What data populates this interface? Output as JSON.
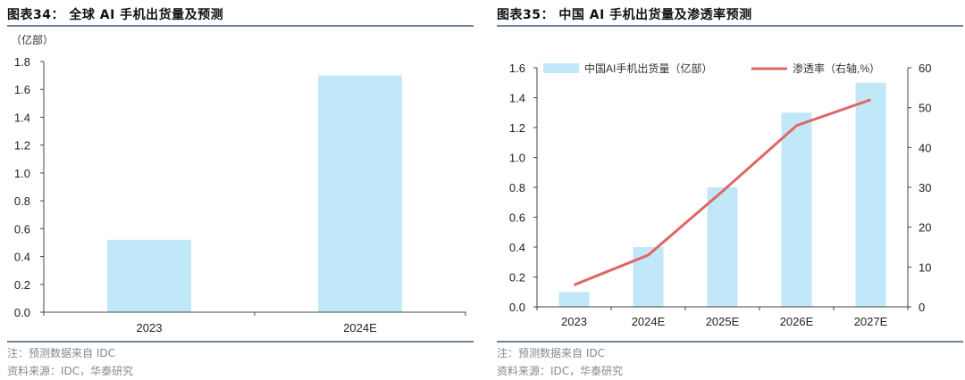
{
  "left": {
    "title": "图表34：  全球 AI 手机出货量及预测",
    "unit": "（亿部）",
    "note": "注：预测数据来自 IDC",
    "source": "资料来源：IDC，华泰研究"
  },
  "right": {
    "title": "图表35：  中国 AI 手机出货量及渗透率预测",
    "legend_bar": "中国AI手机出货量（亿部）",
    "legend_line": "渗透率（右轴,%）",
    "note": "注：预测数据来自 IDC",
    "source": "资料来源：IDC，华泰研究"
  },
  "colors": {
    "bar": "#c1e8f8",
    "line": "#e06666",
    "axis": "#444444",
    "rule": "#6f8296"
  },
  "chart_data": [
    {
      "type": "bar",
      "title": "全球 AI 手机出货量及预测",
      "categories": [
        "2023",
        "2024E"
      ],
      "values": [
        0.52,
        1.7
      ],
      "xlabel": "",
      "ylabel": "亿部",
      "ylim": [
        0,
        1.8
      ],
      "yticks": [
        "0.0",
        "0.2",
        "0.4",
        "0.6",
        "0.8",
        "1.0",
        "1.2",
        "1.4",
        "1.6",
        "1.8"
      ],
      "grid": false,
      "legend": null
    },
    {
      "type": "bar+line",
      "title": "中国 AI 手机出货量及渗透率预测",
      "categories": [
        "2023",
        "2024E",
        "2025E",
        "2026E",
        "2027E"
      ],
      "series": [
        {
          "name": "中国AI手机出货量（亿部）",
          "type": "bar",
          "axis": "left",
          "values": [
            0.1,
            0.4,
            0.8,
            1.3,
            1.5
          ]
        },
        {
          "name": "渗透率（右轴,%）",
          "type": "line",
          "axis": "right",
          "values": [
            5.5,
            13,
            29,
            45.5,
            52
          ]
        }
      ],
      "ylim": [
        0,
        1.6
      ],
      "yticks": [
        "0.0",
        "0.2",
        "0.4",
        "0.6",
        "0.8",
        "1.0",
        "1.2",
        "1.4",
        "1.6"
      ],
      "y2lim": [
        0,
        60
      ],
      "y2ticks": [
        "0",
        "10",
        "20",
        "30",
        "40",
        "50",
        "60"
      ],
      "grid": false,
      "legend": "top"
    }
  ]
}
